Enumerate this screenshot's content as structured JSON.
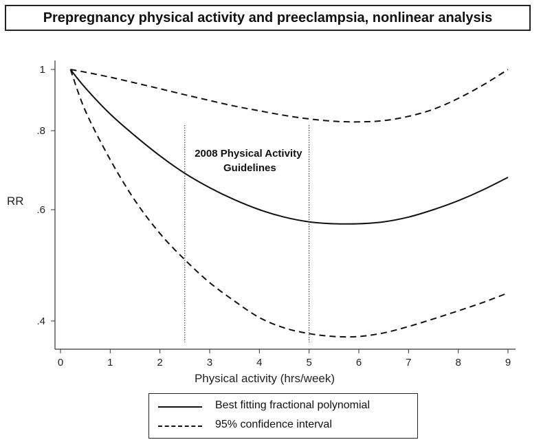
{
  "chart_data": {
    "type": "line",
    "title": "Prepregnancy physical activity and preeclampsia, nonlinear analysis",
    "xlabel": "Physical activity (hrs/week)",
    "ylabel": "RR",
    "xlim": [
      0,
      9
    ],
    "ylim": [
      0.37,
      1.0
    ],
    "x_ticks": [
      0,
      1,
      2,
      3,
      4,
      5,
      6,
      7,
      8,
      9
    ],
    "y_ticks": [
      0.4,
      0.6,
      0.8,
      1.0
    ],
    "y_tick_labels": [
      ".4",
      ".6",
      ".8",
      "1"
    ],
    "grid": false,
    "reference_lines": [
      {
        "x": 2.5,
        "style": "dotted"
      },
      {
        "x": 5.0,
        "style": "dotted"
      }
    ],
    "annotation": {
      "line1": "2008  Physical Activity",
      "line2": "Guidelines",
      "x": 4.0,
      "y": 0.75
    },
    "series": [
      {
        "name": "Best fitting fractional polynomial",
        "style": "solid",
        "x": [
          0.2,
          0.5,
          1.0,
          1.5,
          2.0,
          2.5,
          3.0,
          3.5,
          4.0,
          4.5,
          5.0,
          5.5,
          6.0,
          6.5,
          7.0,
          7.5,
          8.0,
          8.5,
          9.0
        ],
        "y": [
          1.0,
          0.935,
          0.85,
          0.785,
          0.73,
          0.685,
          0.65,
          0.622,
          0.6,
          0.584,
          0.574,
          0.57,
          0.57,
          0.574,
          0.584,
          0.6,
          0.62,
          0.645,
          0.675
        ]
      },
      {
        "name": "95% confidence interval",
        "style": "dashed",
        "x": [
          0.2,
          0.5,
          1.0,
          1.5,
          2.0,
          2.5,
          3.0,
          3.5,
          4.0,
          4.5,
          5.0,
          5.5,
          6.0,
          6.5,
          7.0,
          7.5,
          8.0,
          8.5,
          9.0
        ],
        "y": [
          1.0,
          0.99,
          0.972,
          0.952,
          0.932,
          0.912,
          0.893,
          0.875,
          0.86,
          0.846,
          0.835,
          0.828,
          0.826,
          0.83,
          0.843,
          0.865,
          0.9,
          0.945,
          1.0
        ]
      },
      {
        "name": "",
        "style": "dashed",
        "x": [
          0.2,
          0.5,
          1.0,
          1.5,
          2.0,
          2.5,
          3.0,
          3.5,
          4.0,
          4.5,
          5.0,
          5.5,
          6.0,
          6.5,
          7.0,
          7.5,
          8.0,
          8.5,
          9.0
        ],
        "y": [
          1.0,
          0.86,
          0.72,
          0.62,
          0.55,
          0.5,
          0.46,
          0.43,
          0.405,
          0.39,
          0.382,
          0.378,
          0.378,
          0.383,
          0.392,
          0.403,
          0.415,
          0.428,
          0.443
        ]
      }
    ],
    "legend": {
      "position": "bottom-center",
      "entries": [
        {
          "label": "Best fitting fractional polynomial",
          "style": "solid"
        },
        {
          "label": "95% confidence interval",
          "style": "dashed"
        }
      ]
    },
    "colors": {
      "line": "#111111",
      "axis": "#333333"
    }
  }
}
